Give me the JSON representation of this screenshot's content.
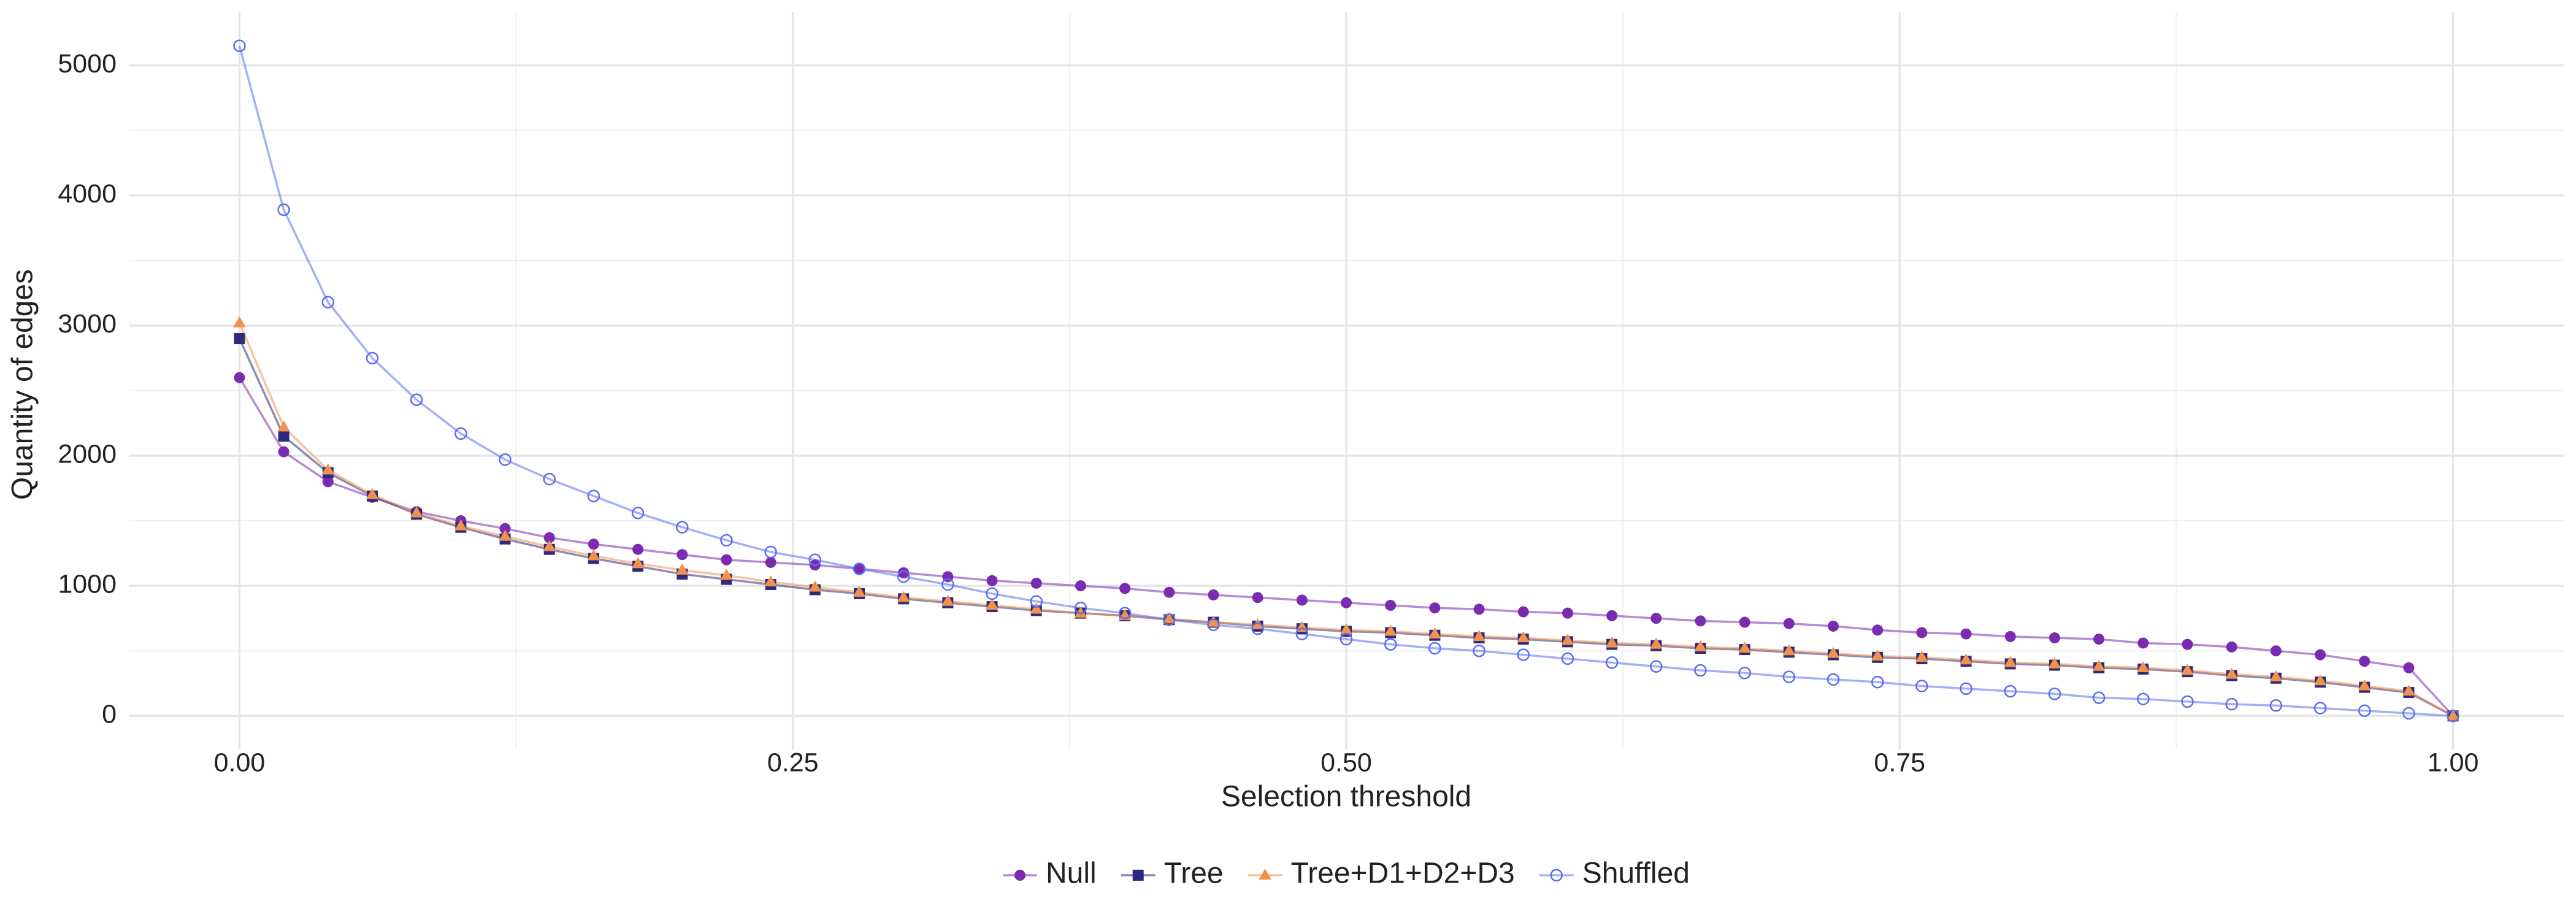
{
  "chart_data": {
    "type": "line",
    "x_label": "Selection threshold",
    "y_label": "Quantity of edges",
    "x": [
      0,
      0.02,
      0.04,
      0.06,
      0.08,
      0.1,
      0.12,
      0.14,
      0.16,
      0.18,
      0.2,
      0.22,
      0.24,
      0.26,
      0.28,
      0.3,
      0.32,
      0.34,
      0.36,
      0.38,
      0.4,
      0.42,
      0.44,
      0.46,
      0.48,
      0.5,
      0.52,
      0.54,
      0.56,
      0.58,
      0.6,
      0.62,
      0.64,
      0.66,
      0.68,
      0.7,
      0.72,
      0.74,
      0.76,
      0.78,
      0.8,
      0.82,
      0.84,
      0.86,
      0.88,
      0.9,
      0.92,
      0.94,
      0.96,
      0.98,
      1
    ],
    "series": [
      {
        "name": "Null",
        "color": "#7b2bb0",
        "marker": "circle",
        "values": [
          2600,
          2030,
          1800,
          1680,
          1570,
          1500,
          1440,
          1370,
          1320,
          1280,
          1240,
          1200,
          1180,
          1160,
          1130,
          1100,
          1070,
          1040,
          1020,
          1000,
          980,
          950,
          930,
          910,
          890,
          870,
          850,
          830,
          820,
          800,
          790,
          770,
          750,
          730,
          720,
          710,
          690,
          660,
          640,
          630,
          610,
          600,
          590,
          560,
          550,
          530,
          500,
          470,
          420,
          370,
          0
        ]
      },
      {
        "name": "Tree",
        "color": "#2d2a7f",
        "marker": "square",
        "values": [
          2900,
          2150,
          1870,
          1690,
          1550,
          1450,
          1360,
          1280,
          1210,
          1150,
          1090,
          1050,
          1010,
          970,
          940,
          900,
          870,
          840,
          810,
          790,
          770,
          740,
          720,
          690,
          670,
          650,
          640,
          620,
          600,
          590,
          570,
          550,
          540,
          520,
          510,
          490,
          470,
          450,
          440,
          420,
          400,
          390,
          370,
          360,
          340,
          310,
          290,
          260,
          220,
          180,
          0
        ]
      },
      {
        "name": "Tree+D1+D2+D3",
        "color": "#f0924a",
        "marker": "triangle",
        "values": [
          3020,
          2220,
          1890,
          1700,
          1560,
          1460,
          1380,
          1300,
          1230,
          1170,
          1120,
          1080,
          1030,
          990,
          950,
          910,
          880,
          850,
          820,
          790,
          770,
          745,
          720,
          700,
          680,
          660,
          650,
          630,
          610,
          600,
          580,
          560,
          550,
          530,
          520,
          500,
          480,
          460,
          450,
          430,
          410,
          400,
          380,
          370,
          350,
          320,
          300,
          270,
          230,
          190,
          0
        ]
      },
      {
        "name": "Shuffled",
        "color": "#5a6ef0",
        "marker": "open-circle",
        "values": [
          5150,
          3890,
          3180,
          2750,
          2430,
          2170,
          1970,
          1820,
          1690,
          1560,
          1450,
          1350,
          1260,
          1200,
          1130,
          1070,
          1010,
          940,
          880,
          830,
          790,
          740,
          700,
          670,
          630,
          590,
          550,
          520,
          500,
          470,
          440,
          410,
          380,
          350,
          330,
          300,
          280,
          260,
          230,
          210,
          190,
          170,
          140,
          130,
          110,
          90,
          80,
          60,
          40,
          20,
          0
        ]
      }
    ],
    "xlim": [
      -0.05,
      1.05
    ],
    "ylim": [
      -258,
      5408
    ],
    "xticks": [
      {
        "value": 0,
        "label": "0.00"
      },
      {
        "value": 0.25,
        "label": "0.25"
      },
      {
        "value": 0.5,
        "label": "0.50"
      },
      {
        "value": 0.75,
        "label": "0.75"
      },
      {
        "value": 1,
        "label": "1.00"
      }
    ],
    "yticks": [
      0,
      1000,
      2000,
      3000,
      4000,
      5000
    ],
    "xminorticks": [
      0.125,
      0.375,
      0.625,
      0.875
    ],
    "yminorticks": [
      500,
      1500,
      2500,
      3500,
      4500
    ],
    "grid": true,
    "legend": "bottom"
  }
}
